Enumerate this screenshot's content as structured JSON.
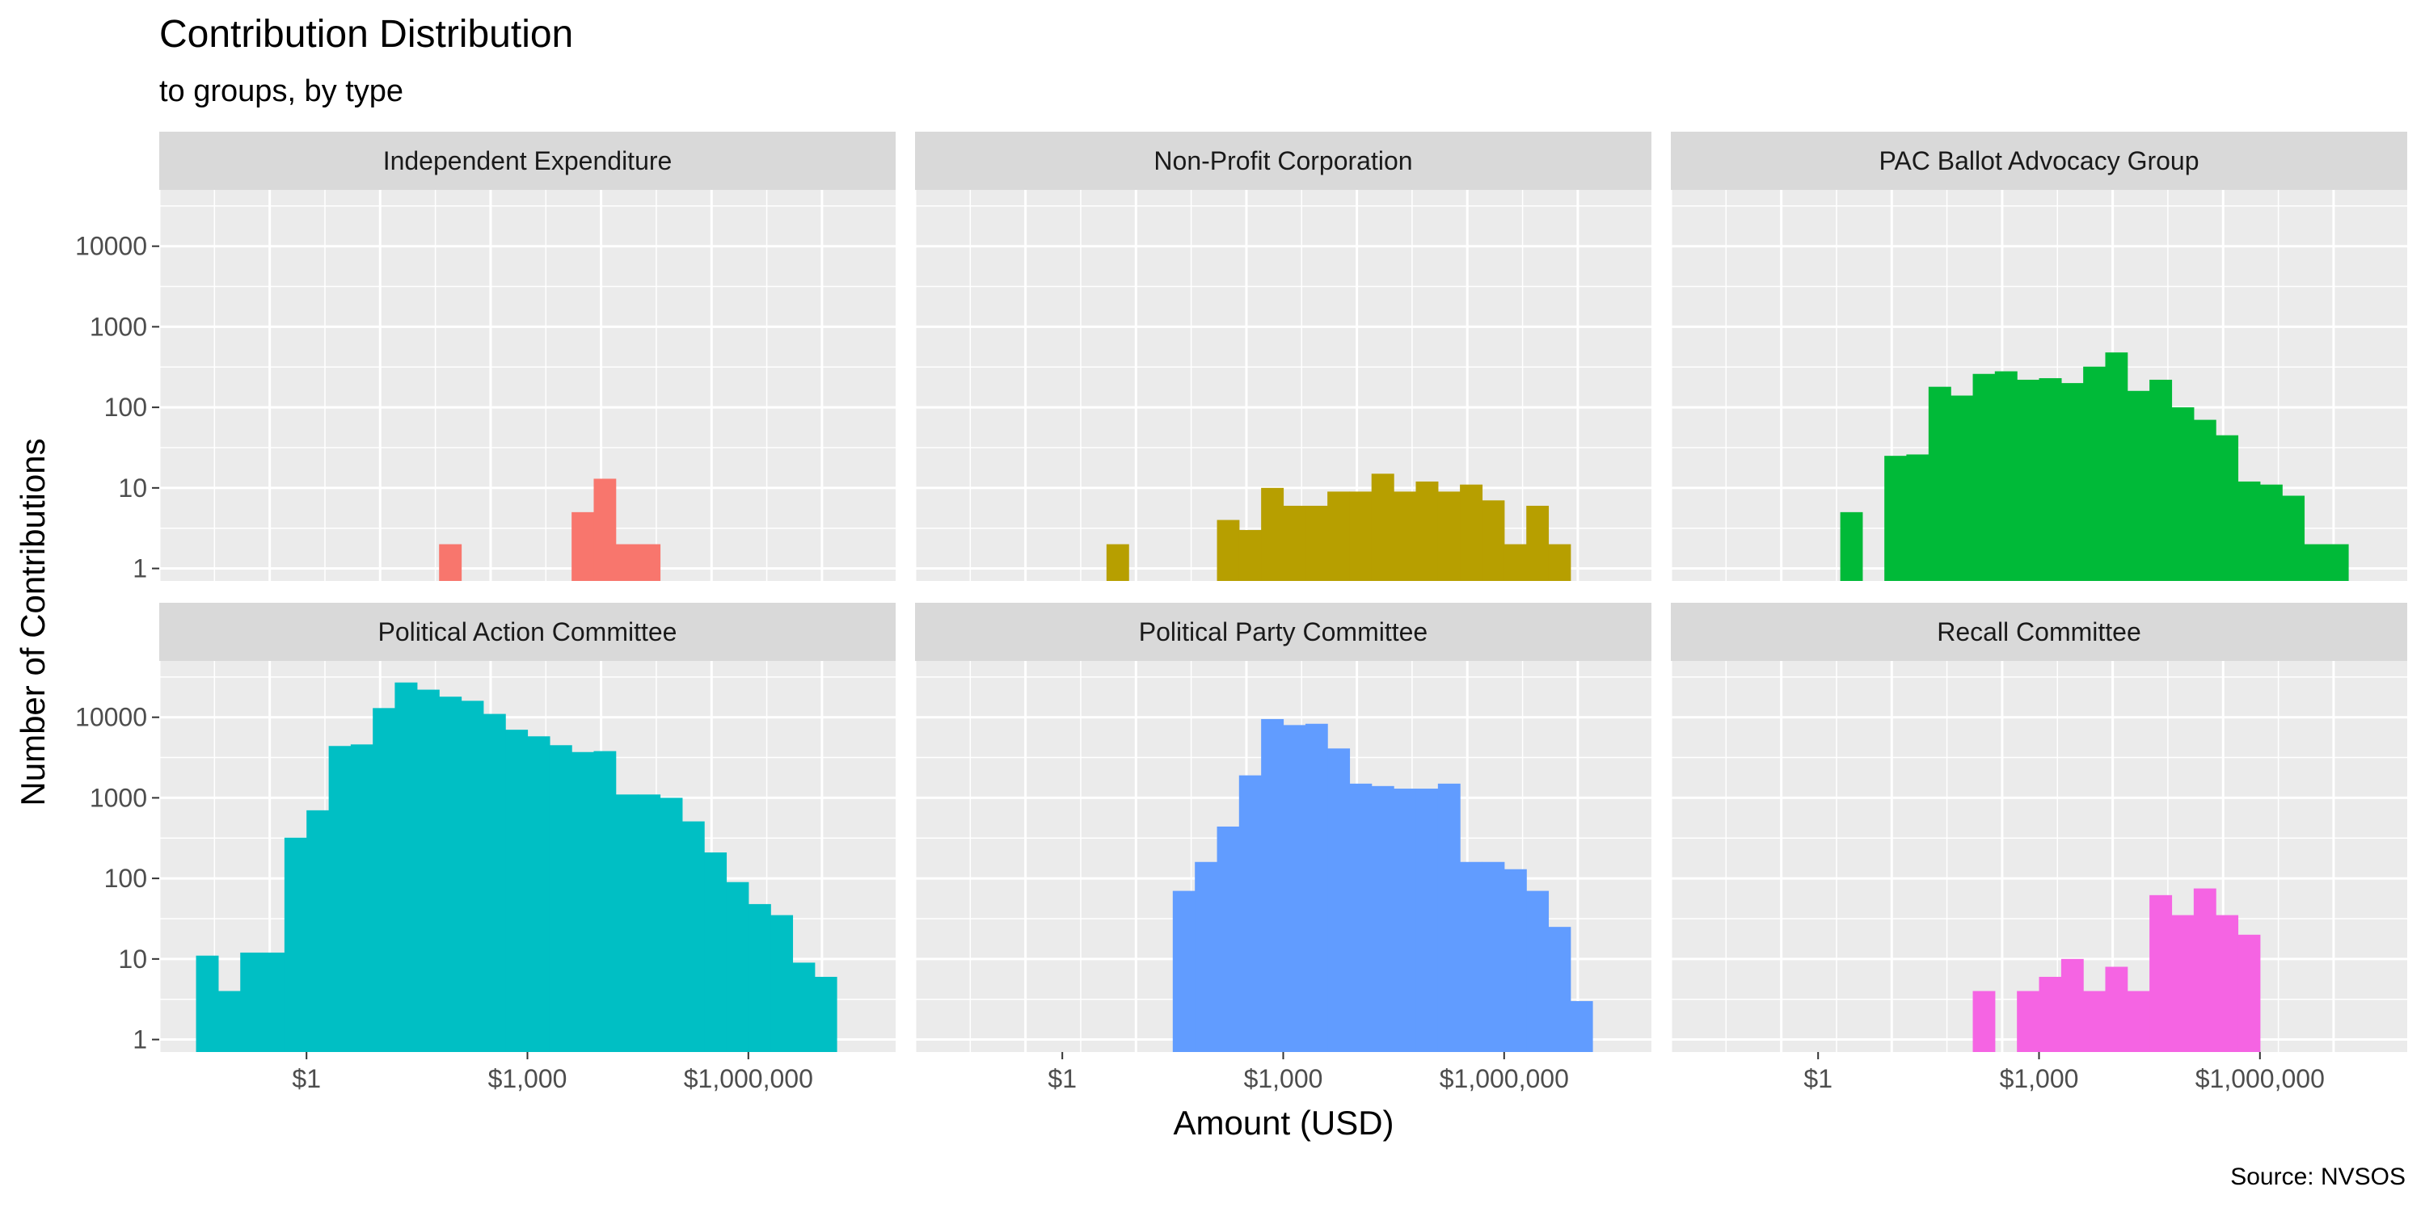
{
  "chart_data": {
    "type": "bar",
    "title": "Contribution Distribution",
    "subtitle": "to groups, by type",
    "xlabel": "Amount (USD)",
    "ylabel": "Number of Contributions",
    "caption": "Source: NVSOS",
    "x_scale": "log10",
    "y_scale": "log10",
    "xlim": [
      0.01,
      100000000
    ],
    "ylim": [
      0.7,
      50000
    ],
    "grid": true,
    "legend": "none",
    "x_ticks": [
      {
        "value": 1,
        "label": "$1"
      },
      {
        "value": 1000,
        "label": "$1,000"
      },
      {
        "value": 1000000,
        "label": "$1,000,000"
      }
    ],
    "y_ticks": [
      {
        "value": 1,
        "label": "1"
      },
      {
        "value": 10,
        "label": "10"
      },
      {
        "value": 100,
        "label": "100"
      },
      {
        "value": 1000,
        "label": "1000"
      },
      {
        "value": 10000,
        "label": "10000"
      }
    ],
    "bin_edges": [
      0.0316,
      0.0631,
      0.126,
      0.251,
      0.501,
      1.0,
      2.0,
      3.98,
      7.94,
      15.8,
      31.6,
      63.1,
      126,
      251,
      501,
      1000,
      2000,
      3980,
      7940,
      15800,
      31600,
      63100,
      126000,
      251000,
      501000,
      1000000,
      2000000,
      3980000,
      7940000,
      15800000,
      31600000
    ],
    "panels": [
      {
        "name": "Independent Expenditure",
        "color": "#F8766D",
        "counts": [
          0,
          0,
          0,
          0,
          0,
          0,
          0,
          0,
          0,
          0,
          0,
          2,
          0,
          0,
          0,
          0,
          0,
          5,
          13,
          2,
          2,
          0,
          0,
          0,
          0,
          0,
          0,
          0,
          0,
          0
        ]
      },
      {
        "name": "Non-Profit Corporation",
        "color": "#B79F00",
        "counts": [
          0,
          0,
          0,
          0,
          0,
          0,
          0,
          2,
          0,
          0,
          0,
          0,
          4,
          3,
          10,
          6,
          6,
          9,
          9,
          15,
          9,
          12,
          9,
          11,
          7,
          2,
          6,
          2,
          0,
          0
        ]
      },
      {
        "name": "PAC Ballot Advocacy Group",
        "color": "#00BA38",
        "counts": [
          0,
          0,
          0,
          0,
          0,
          0,
          5,
          0,
          25,
          26,
          180,
          140,
          260,
          280,
          220,
          230,
          200,
          320,
          480,
          160,
          220,
          100,
          70,
          45,
          12,
          11,
          8,
          2,
          2,
          0
        ]
      },
      {
        "name": "Political Action Committee",
        "color": "#00BFC4",
        "counts": [
          11,
          4,
          12,
          12,
          320,
          700,
          4400,
          4600,
          13000,
          27000,
          22000,
          18000,
          16000,
          11000,
          7000,
          5800,
          4500,
          3700,
          3800,
          1100,
          1100,
          1000,
          510,
          210,
          90,
          48,
          35,
          9,
          6,
          0
        ]
      },
      {
        "name": "Political Party Committee",
        "color": "#619CFF",
        "counts": [
          0,
          0,
          0,
          0,
          0,
          0,
          0,
          0,
          0,
          0,
          70,
          160,
          440,
          1900,
          9500,
          8000,
          8300,
          4100,
          1500,
          1400,
          1300,
          1300,
          1500,
          160,
          160,
          130,
          70,
          25,
          3,
          0
        ]
      },
      {
        "name": "Recall Committee",
        "color": "#F564E3",
        "counts": [
          0,
          0,
          0,
          0,
          0,
          0,
          0,
          0,
          0,
          0,
          0,
          0,
          4,
          0,
          4,
          6,
          10,
          4,
          8,
          4,
          62,
          35,
          75,
          35,
          20,
          0,
          0,
          0,
          0,
          0
        ]
      }
    ]
  }
}
